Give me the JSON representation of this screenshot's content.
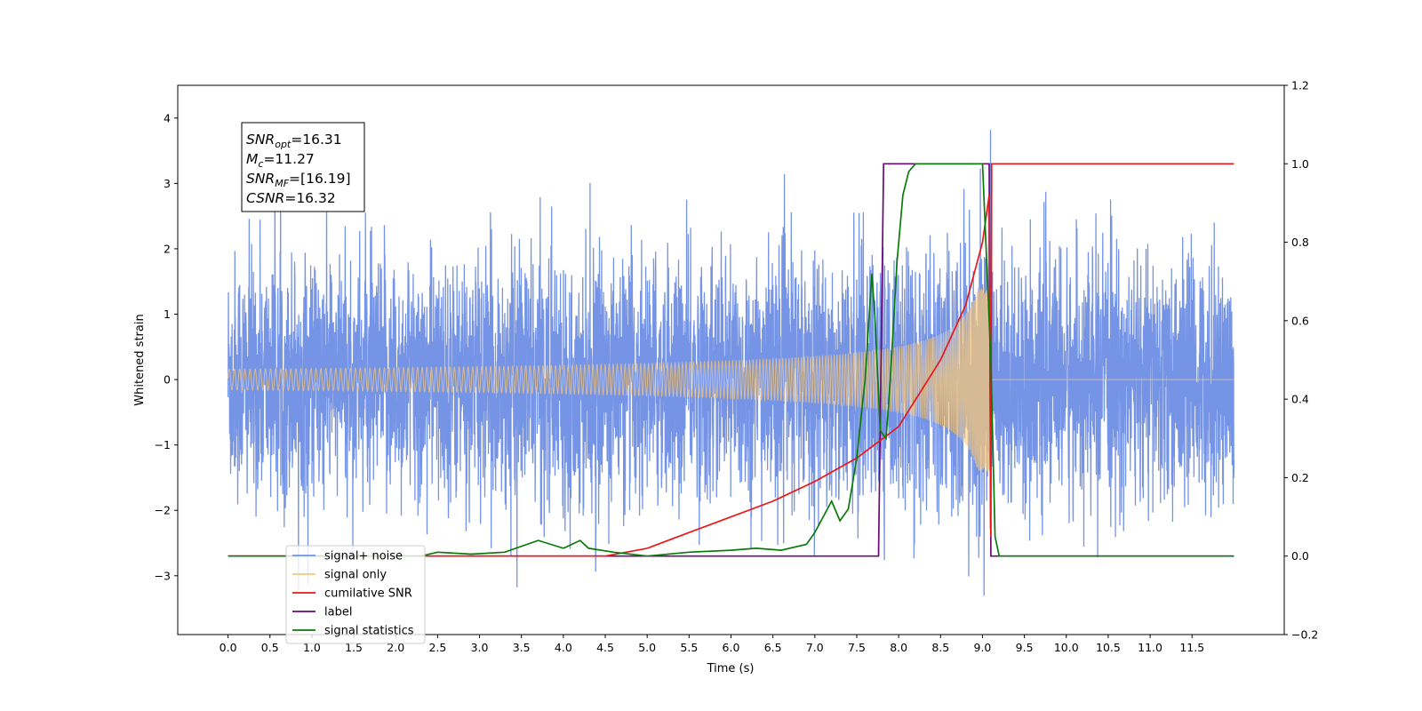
{
  "chart_data": {
    "type": "line",
    "xlabel": "Time (s)",
    "ylabel": "Whitened strain",
    "xlim": [
      -0.6,
      12.6
    ],
    "ylim": [
      -3.9,
      4.5
    ],
    "y2lim": [
      -0.2,
      1.2
    ],
    "x_ticks": [
      "0.0",
      "0.5",
      "1.0",
      "1.5",
      "2.0",
      "2.5",
      "3.0",
      "3.5",
      "4.0",
      "4.5",
      "5.0",
      "5.5",
      "6.0",
      "6.5",
      "7.0",
      "7.5",
      "8.0",
      "8.5",
      "9.0",
      "9.5",
      "10.0",
      "10.5",
      "11.0",
      "11.5"
    ],
    "y_ticks": [
      "−3",
      "−2",
      "−1",
      "0",
      "1",
      "2",
      "3",
      "4"
    ],
    "y2_ticks": [
      "−0.2",
      "0.0",
      "0.2",
      "0.4",
      "0.6",
      "0.8",
      "1.0",
      "1.2"
    ],
    "grid": false,
    "legend_position": "lower-left",
    "annotation": {
      "lines": [
        {
          "name": "SNR",
          "sub": "opt",
          "value": "=16.31"
        },
        {
          "name": "M",
          "sub": "c",
          "value": "=11.27"
        },
        {
          "name": "SNR",
          "sub": "MF",
          "value": "=[16.19]"
        },
        {
          "name": "CSNR",
          "sub": "",
          "value": "=16.32"
        }
      ]
    },
    "signal": {
      "t_start": 0.0,
      "t_end": 12.0,
      "t_merger": 9.1,
      "noise_sigma": 0.9,
      "peak_amplitude": 1.4
    },
    "series": [
      {
        "name": "signal+ noise",
        "axis": "left",
        "color": "#7594e6"
      },
      {
        "name": "signal only",
        "axis": "left",
        "color": "#f5c77a"
      },
      {
        "name": "cumilative SNR",
        "axis": "right",
        "color": "#e81818",
        "x": [
          0.0,
          4.5,
          5.0,
          5.5,
          6.0,
          6.5,
          7.0,
          7.5,
          8.0,
          8.5,
          8.8,
          9.0,
          9.08,
          9.1,
          9.11,
          12.0
        ],
        "values": [
          0.0,
          0.0,
          0.02,
          0.06,
          0.1,
          0.14,
          0.19,
          0.25,
          0.33,
          0.5,
          0.64,
          0.8,
          0.92,
          0.05,
          1.0,
          1.0
        ]
      },
      {
        "name": "label",
        "axis": "right",
        "color": "#6a0a78",
        "x": [
          0.0,
          7.76,
          7.82,
          9.08,
          9.1,
          12.0
        ],
        "values": [
          0.0,
          0.0,
          1.0,
          1.0,
          0.0,
          0.0
        ]
      },
      {
        "name": "signal statistics",
        "axis": "right",
        "color": "#0a7a0a",
        "x": [
          0.0,
          2.3,
          2.5,
          2.9,
          3.3,
          3.7,
          4.0,
          4.2,
          4.3,
          4.6,
          5.0,
          5.5,
          6.0,
          6.3,
          6.6,
          6.9,
          7.0,
          7.1,
          7.2,
          7.3,
          7.4,
          7.5,
          7.6,
          7.68,
          7.72,
          7.78,
          7.85,
          7.9,
          7.98,
          8.05,
          8.12,
          8.2,
          8.3,
          8.5,
          9.0,
          9.1,
          9.15,
          9.2,
          12.0
        ],
        "values": [
          0.0,
          0.0,
          0.01,
          0.005,
          0.01,
          0.04,
          0.02,
          0.04,
          0.02,
          0.01,
          0.0,
          0.01,
          0.015,
          0.02,
          0.015,
          0.03,
          0.06,
          0.1,
          0.14,
          0.09,
          0.12,
          0.25,
          0.45,
          0.72,
          0.6,
          0.32,
          0.3,
          0.45,
          0.75,
          0.92,
          0.98,
          1.0,
          1.0,
          1.0,
          1.0,
          0.5,
          0.05,
          0.0,
          0.0
        ]
      }
    ],
    "legend_items": [
      "signal+ noise",
      "signal only",
      "cumilative SNR",
      "label",
      "signal statistics"
    ]
  }
}
